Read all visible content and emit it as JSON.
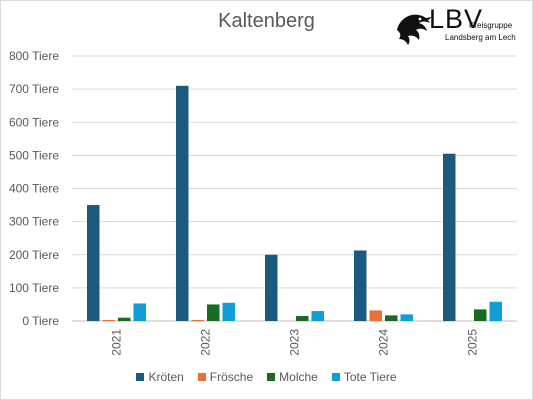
{
  "chart_data": {
    "type": "bar",
    "title": "Kaltenberg",
    "categories": [
      "2021",
      "2022",
      "2023",
      "2024",
      "2025"
    ],
    "series": [
      {
        "name": "Kröten",
        "color": "#1b5a7e",
        "values": [
          350,
          710,
          200,
          213,
          505
        ]
      },
      {
        "name": "Frösche",
        "color": "#e97132",
        "values": [
          3,
          3,
          0,
          32,
          0
        ]
      },
      {
        "name": "Molche",
        "color": "#196b24",
        "values": [
          10,
          50,
          15,
          17,
          35
        ]
      },
      {
        "name": "Tote Tiere",
        "color": "#0f9ed5",
        "values": [
          53,
          55,
          30,
          20,
          58
        ]
      }
    ],
    "yticks": [
      "0 Tiere",
      "100 Tiere",
      "200 Tiere",
      "300 Tiere",
      "400 Tiere",
      "500 Tiere",
      "600 Tiere",
      "700 Tiere",
      "800 Tiere"
    ],
    "ylim": [
      0,
      800
    ],
    "grid": true,
    "legend": "bottom"
  },
  "logo": {
    "text": "LBV",
    "line1": "Kreisgruppe",
    "line2": "Landsberg am Lech"
  }
}
